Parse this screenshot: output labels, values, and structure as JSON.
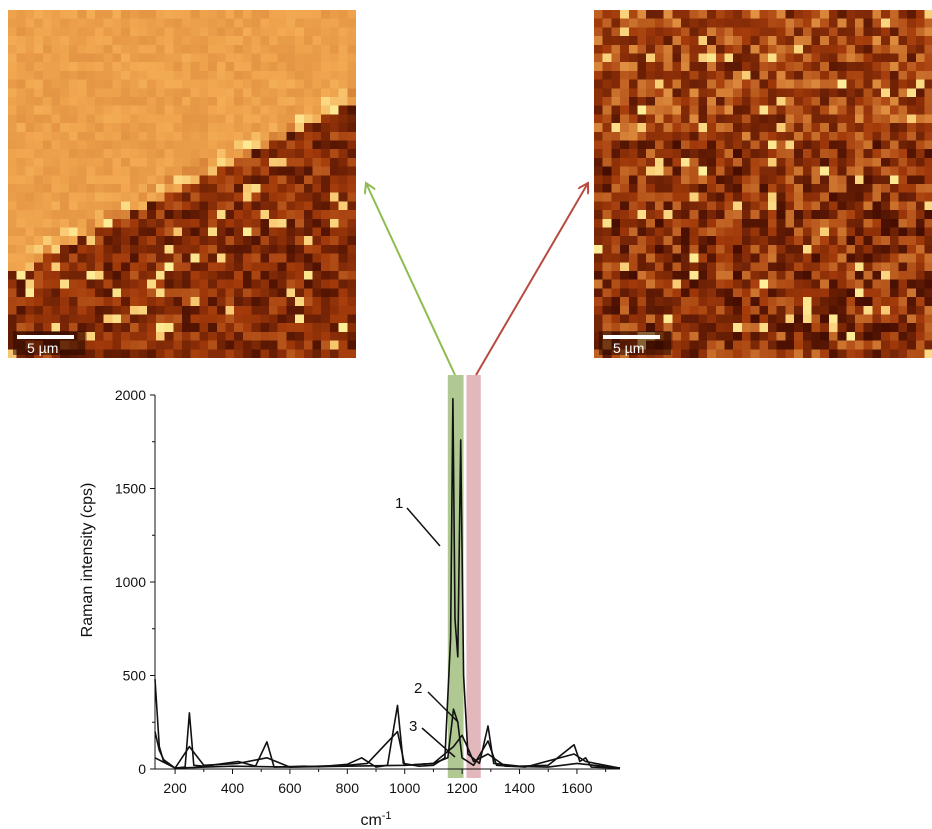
{
  "maps": {
    "left": {
      "scalebar_label": "5 µm"
    },
    "right": {
      "scalebar_label": "5 µm"
    }
  },
  "colors": {
    "green_band": "#8fb264",
    "red_band": "#d9a0a6",
    "green_arrow": "#8fbb50",
    "red_arrow": "#b84a40",
    "map_dark": "#3a0800",
    "map_mid": "#a33a0a",
    "map_bright": "#f2a850",
    "map_highlight": "#fff09a"
  },
  "chart_data": {
    "type": "line",
    "xlabel": "cm",
    "xlabel_sup": "-1",
    "ylabel": "Raman intensity (cps)",
    "xlim": [
      130,
      1750
    ],
    "ylim": [
      0,
      2000
    ],
    "xticks": [
      200,
      400,
      600,
      800,
      1000,
      1200,
      1400,
      1600
    ],
    "yticks": [
      0,
      500,
      1000,
      1500,
      2000
    ],
    "highlight_bands": [
      {
        "color": "green",
        "x_range": [
          1150,
          1205
        ]
      },
      {
        "color": "red",
        "x_range": [
          1215,
          1265
        ]
      }
    ],
    "annotations": [
      "1",
      "2",
      "3"
    ],
    "series": [
      {
        "values": [
          [
            130,
            480
          ],
          [
            145,
            120
          ],
          [
            160,
            40
          ],
          [
            200,
            5
          ],
          [
            235,
            10
          ],
          [
            250,
            300
          ],
          [
            265,
            20
          ],
          [
            300,
            15
          ],
          [
            350,
            25
          ],
          [
            420,
            40
          ],
          [
            480,
            15
          ],
          [
            520,
            145
          ],
          [
            545,
            10
          ],
          [
            650,
            15
          ],
          [
            700,
            12
          ],
          [
            800,
            25
          ],
          [
            850,
            60
          ],
          [
            900,
            10
          ],
          [
            940,
            20
          ],
          [
            975,
            340
          ],
          [
            995,
            30
          ],
          [
            1050,
            15
          ],
          [
            1100,
            20
          ],
          [
            1140,
            60
          ],
          [
            1160,
            700
          ],
          [
            1168,
            1980
          ],
          [
            1175,
            800
          ],
          [
            1185,
            600
          ],
          [
            1195,
            1760
          ],
          [
            1205,
            500
          ],
          [
            1220,
            80
          ],
          [
            1260,
            30
          ],
          [
            1290,
            230
          ],
          [
            1310,
            30
          ],
          [
            1400,
            15
          ],
          [
            1500,
            20
          ],
          [
            1590,
            130
          ],
          [
            1610,
            40
          ],
          [
            1630,
            60
          ],
          [
            1650,
            10
          ],
          [
            1750,
            5
          ]
        ]
      },
      {
        "values": [
          [
            130,
            200
          ],
          [
            145,
            100
          ],
          [
            160,
            50
          ],
          [
            200,
            5
          ],
          [
            250,
            120
          ],
          [
            300,
            20
          ],
          [
            420,
            30
          ],
          [
            520,
            60
          ],
          [
            600,
            10
          ],
          [
            800,
            20
          ],
          [
            870,
            30
          ],
          [
            975,
            200
          ],
          [
            1000,
            20
          ],
          [
            1100,
            30
          ],
          [
            1150,
            60
          ],
          [
            1170,
            320
          ],
          [
            1185,
            250
          ],
          [
            1200,
            60
          ],
          [
            1240,
            20
          ],
          [
            1290,
            150
          ],
          [
            1320,
            20
          ],
          [
            1420,
            10
          ],
          [
            1590,
            80
          ],
          [
            1630,
            40
          ],
          [
            1750,
            5
          ]
        ]
      },
      {
        "values": [
          [
            130,
            60
          ],
          [
            200,
            5
          ],
          [
            300,
            10
          ],
          [
            400,
            15
          ],
          [
            600,
            10
          ],
          [
            800,
            15
          ],
          [
            1000,
            20
          ],
          [
            1100,
            30
          ],
          [
            1170,
            120
          ],
          [
            1200,
            180
          ],
          [
            1215,
            130
          ],
          [
            1240,
            40
          ],
          [
            1290,
            80
          ],
          [
            1350,
            15
          ],
          [
            1500,
            10
          ],
          [
            1600,
            30
          ],
          [
            1750,
            5
          ]
        ]
      }
    ]
  }
}
